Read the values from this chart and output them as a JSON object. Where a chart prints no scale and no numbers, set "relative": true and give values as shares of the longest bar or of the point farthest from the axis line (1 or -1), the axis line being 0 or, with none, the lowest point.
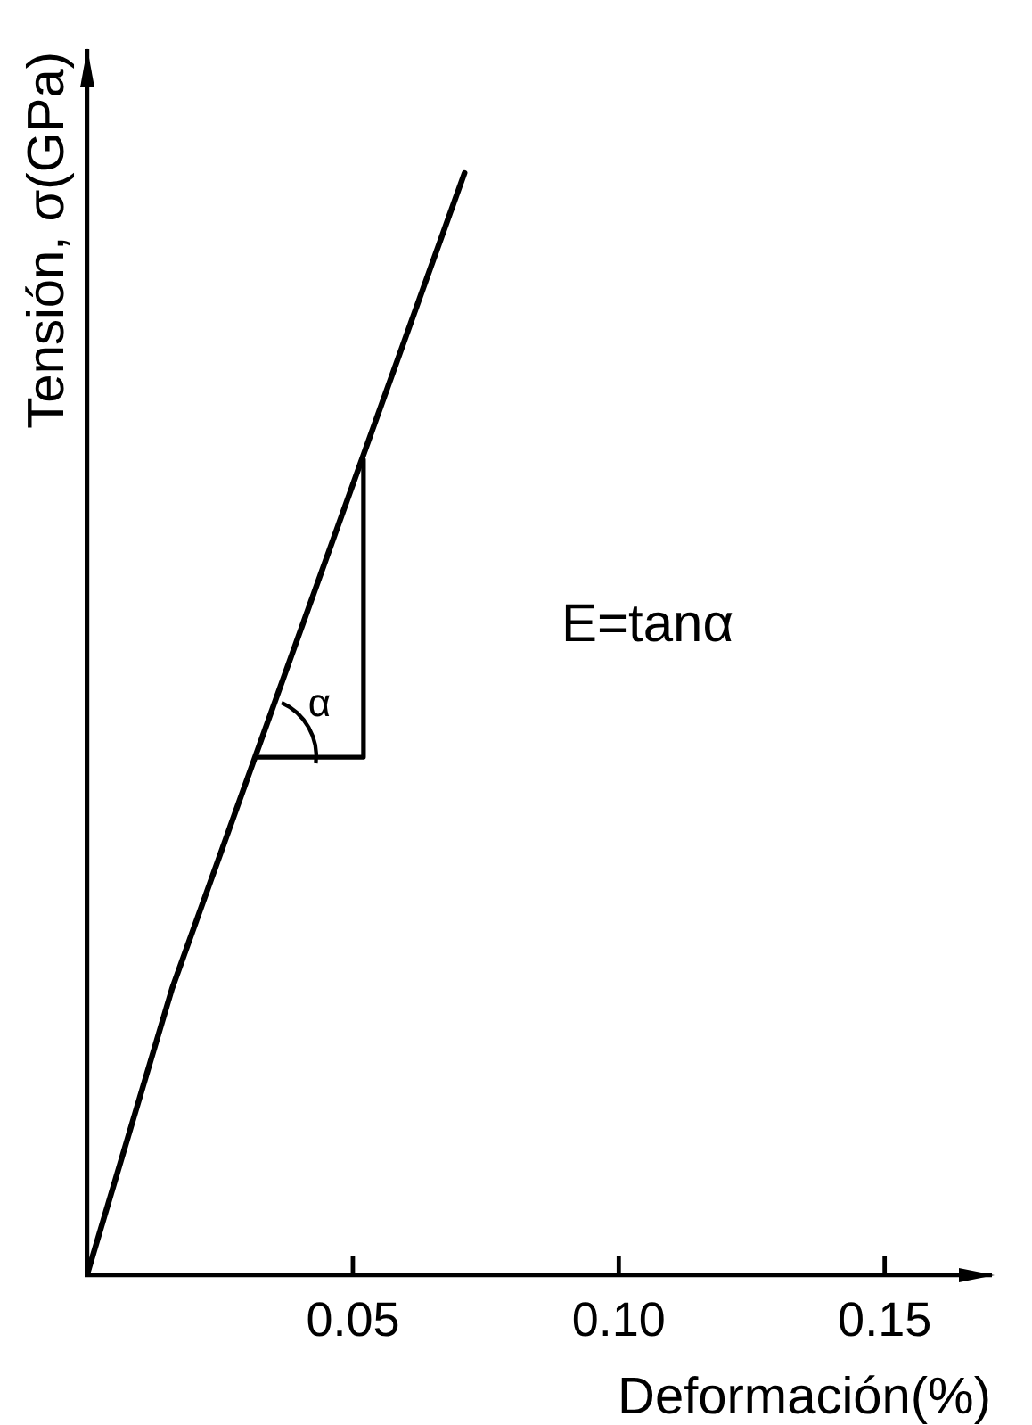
{
  "chart_data": {
    "type": "line",
    "xlabel": "Deformación(%)",
    "ylabel": "Tensión, σ(GPa)",
    "annotations": [
      "E=tanα",
      "α"
    ],
    "xlim": [
      0,
      0.17
    ],
    "xticks": [
      0.05,
      {
        "value": 0.1,
        "label": "0.10"
      },
      0.15
    ],
    "relative": true,
    "tick_labels": "x",
    "marker": "none",
    "series": [
      {
        "color": "#000000",
        "x": [
          0,
          0.016,
          0.071
        ],
        "values": [
          0,
          0.26,
          1
        ]
      },
      {
        "color": "#000000",
        "x": [
          0.032,
          0.052,
          0.052
        ],
        "values": [
          0.47,
          0.47,
          0.74
        ]
      }
    ]
  }
}
